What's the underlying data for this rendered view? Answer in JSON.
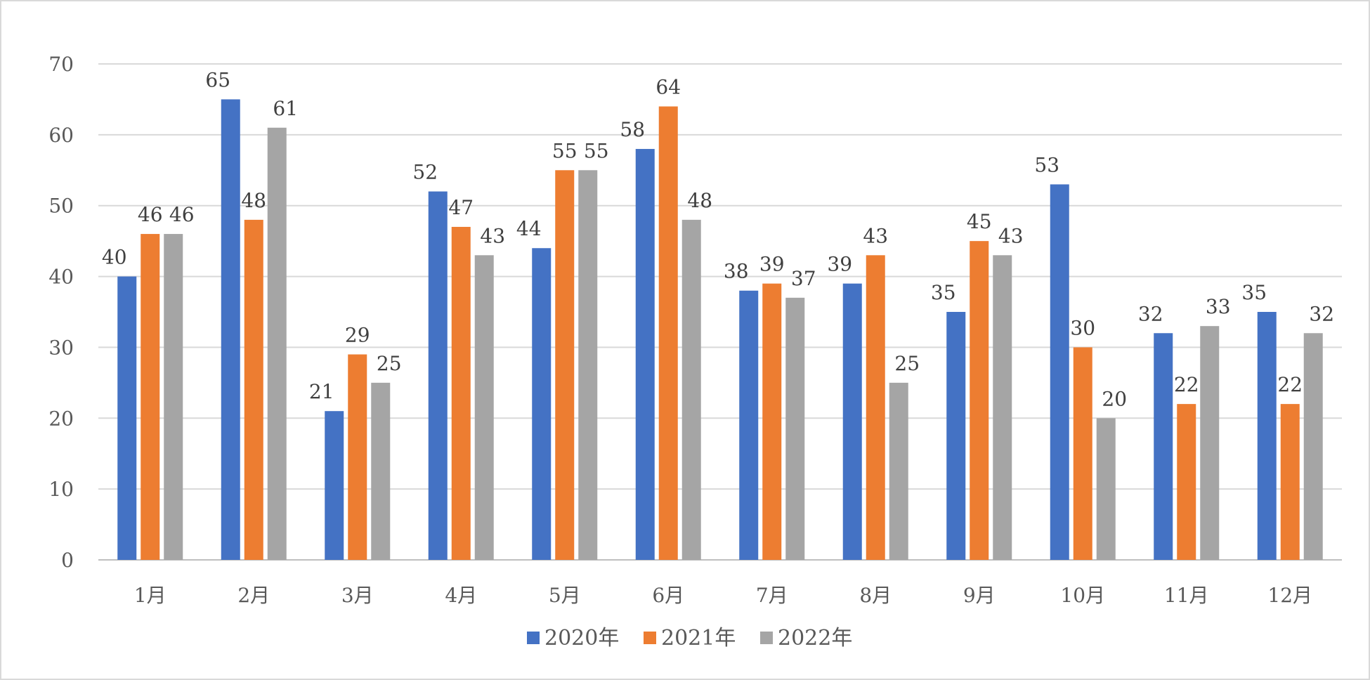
{
  "chart_data": {
    "type": "bar",
    "title": "",
    "xlabel": "",
    "ylabel": "",
    "ylim": [
      0,
      70
    ],
    "yticks": [
      0,
      10,
      20,
      30,
      40,
      50,
      60,
      70
    ],
    "grid": true,
    "legend_position": "bottom",
    "categories": [
      "1月",
      "2月",
      "3月",
      "4月",
      "5月",
      "6月",
      "7月",
      "8月",
      "9月",
      "10月",
      "11月",
      "12月"
    ],
    "series": [
      {
        "name": "2020年",
        "color": "#4472C4",
        "values": [
          40,
          65,
          21,
          52,
          44,
          58,
          38,
          39,
          35,
          53,
          32,
          35
        ]
      },
      {
        "name": "2021年",
        "color": "#ED7D31",
        "values": [
          46,
          48,
          29,
          47,
          55,
          64,
          39,
          43,
          45,
          30,
          22,
          22
        ]
      },
      {
        "name": "2022年",
        "color": "#A5A5A5",
        "values": [
          46,
          61,
          25,
          43,
          55,
          48,
          37,
          25,
          43,
          20,
          33,
          32
        ]
      }
    ],
    "tick_labels": [
      "0",
      "10",
      "20",
      "30",
      "40",
      "50",
      "60",
      "70"
    ]
  }
}
